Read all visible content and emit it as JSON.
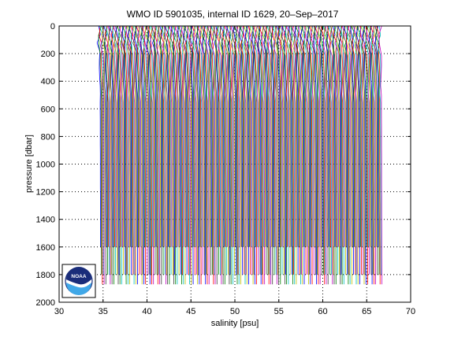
{
  "chart_data": {
    "type": "line",
    "title": "WMO ID 5901035, internal ID 1629, 20–Sep–2017",
    "xlabel": "salinity [psu]",
    "ylabel": "pressure [dbar]",
    "xlim": [
      30,
      70
    ],
    "ylim": [
      0,
      2000
    ],
    "y_reversed": true,
    "grid": true,
    "grid_style": "dotted",
    "xticks": [
      30,
      35,
      40,
      45,
      50,
      55,
      60,
      65,
      70
    ],
    "yticks": [
      0,
      200,
      400,
      600,
      800,
      1000,
      1200,
      1400,
      1600,
      1800,
      2000
    ],
    "profile_offset_psu": 0.1,
    "profile_count": 320,
    "first_profile_salinity_range": [
      34.3,
      34.9
    ],
    "last_profile_salinity_range": [
      66.3,
      66.9
    ],
    "profile_max_pressure_dbar": [
      1600,
      1800,
      1870
    ],
    "series_colors": [
      "#0000ff",
      "#008000",
      "#ff0000",
      "#00bfbf",
      "#bf00bf",
      "#bfbf00",
      "#404040"
    ],
    "logo": {
      "text": "NOAA",
      "colors": {
        "navy": "#1a2d7a",
        "sky": "#40a8e8",
        "white": "#ffffff"
      }
    }
  }
}
